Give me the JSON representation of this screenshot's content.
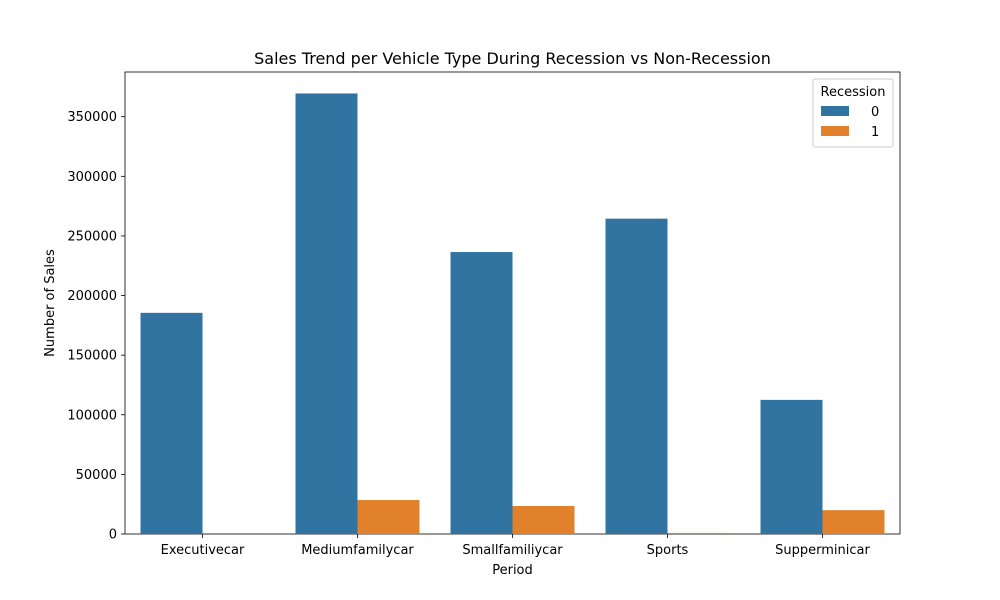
{
  "chart_data": {
    "type": "bar",
    "title": "Sales Trend per Vehicle Type During Recession vs Non-Recession",
    "xlabel": "Period",
    "ylabel": "Number of Sales",
    "categories": [
      "Executivecar",
      "Mediumfamilycar",
      "Smallfamiliycar",
      "Sports",
      "Supperminicar"
    ],
    "ylim": [
      0,
      387500
    ],
    "yticks": [
      0,
      50000,
      100000,
      150000,
      200000,
      250000,
      300000,
      350000
    ],
    "ytick_labels": [
      "0",
      "50000",
      "100000",
      "150000",
      "200000",
      "250000",
      "300000",
      "350000"
    ],
    "legend": {
      "title": "Recession",
      "placement": "top-right"
    },
    "grid": false,
    "series": [
      {
        "name": "0",
        "color": "#3274a1",
        "values": [
          185500,
          369500,
          236500,
          264500,
          112500
        ]
      },
      {
        "name": "1",
        "color": "#e1812c",
        "values": [
          800,
          28500,
          23500,
          900,
          20000
        ]
      }
    ]
  }
}
